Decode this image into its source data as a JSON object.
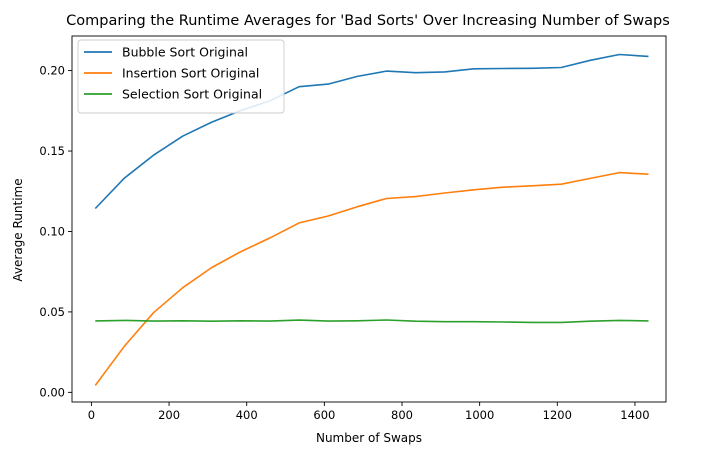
{
  "chart_data": {
    "type": "line",
    "title": "Comparing the Runtime Averages for 'Bad Sorts' Over Increasing Number of Swaps",
    "xlabel": "Number of Swaps",
    "ylabel": "Average Runtime",
    "xlim": [
      -50,
      1480
    ],
    "ylim": [
      -0.006,
      0.2215
    ],
    "xticks": [
      0,
      200,
      400,
      600,
      800,
      1000,
      1200,
      1400
    ],
    "xtick_labels": [
      "0",
      "200",
      "400",
      "600",
      "800",
      "1000",
      "1200",
      "1400"
    ],
    "yticks": [
      0.0,
      0.05,
      0.1,
      0.15,
      0.2
    ],
    "ytick_labels": [
      "0.00",
      "0.05",
      "0.10",
      "0.15",
      "0.20"
    ],
    "grid": false,
    "legend_position": "top-left",
    "x": [
      10,
      85,
      160,
      235,
      310,
      385,
      460,
      535,
      610,
      685,
      760,
      835,
      910,
      985,
      1060,
      1135,
      1210,
      1285,
      1360,
      1435
    ],
    "series": [
      {
        "name": "Bubble Sort Original",
        "color": "#1f77b4",
        "values": [
          0.1143,
          0.1332,
          0.1474,
          0.1592,
          0.168,
          0.1752,
          0.1812,
          0.19,
          0.1916,
          0.1964,
          0.1997,
          0.1987,
          0.1992,
          0.2011,
          0.2013,
          0.2014,
          0.2019,
          0.2064,
          0.21,
          0.2088
        ]
      },
      {
        "name": "Insertion Sort Original",
        "color": "#ff7f0e",
        "values": [
          0.0043,
          0.0287,
          0.0495,
          0.065,
          0.0776,
          0.0875,
          0.096,
          0.1053,
          0.1096,
          0.1154,
          0.1205,
          0.1217,
          0.1239,
          0.1259,
          0.1275,
          0.1284,
          0.1294,
          0.133,
          0.1366,
          0.1356
        ]
      },
      {
        "name": "Selection Sort Original",
        "color": "#2ca02c",
        "values": [
          0.0444,
          0.0447,
          0.0443,
          0.0445,
          0.0442,
          0.0445,
          0.0443,
          0.0449,
          0.0443,
          0.0445,
          0.045,
          0.0442,
          0.0439,
          0.0439,
          0.0437,
          0.0435,
          0.0435,
          0.0442,
          0.0447,
          0.0444
        ]
      }
    ]
  }
}
